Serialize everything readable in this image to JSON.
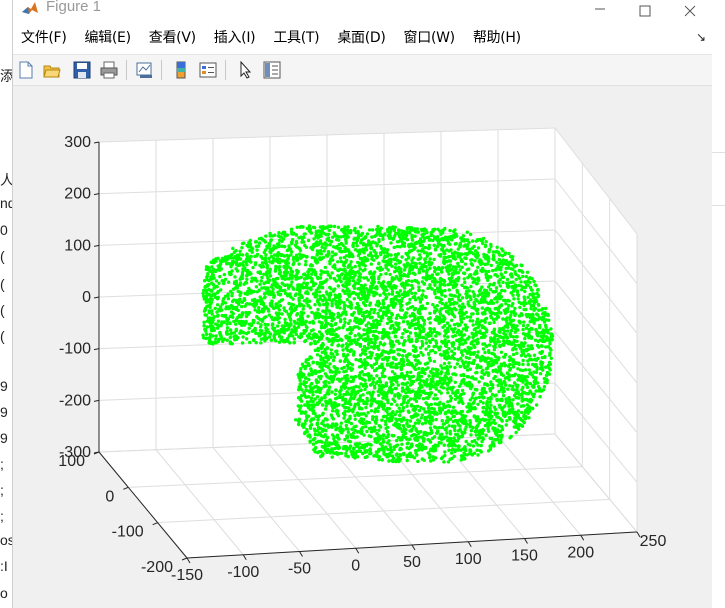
{
  "window": {
    "title": "Figure 1",
    "menu": [
      "文件(F)",
      "编辑(E)",
      "查看(V)",
      "插入(I)",
      "工具(T)",
      "桌面(D)",
      "窗口(W)",
      "帮助(H)"
    ],
    "menu_overflow_icon": "chevron-icon",
    "controls": [
      "minimize-icon",
      "maximize-icon",
      "close-icon"
    ]
  },
  "toolbar": {
    "buttons": [
      "new-figure-icon",
      "open-file-icon",
      "save-icon",
      "print-icon",
      "link-plot-icon",
      "insert-colorbar-icon",
      "insert-legend-icon",
      "edit-plot-pointer-icon",
      "property-inspector-icon"
    ]
  },
  "background_app": {
    "left_fragments": [
      "添",
      "人",
      "nd",
      "0",
      "(",
      "(",
      "(",
      "(",
      "9",
      "9",
      "9",
      ";",
      ";",
      ";",
      "os",
      ":I",
      "o"
    ]
  },
  "chart_data": {
    "type": "scatter",
    "title": "",
    "marker_color": "#00ff00",
    "grid": true,
    "view": "3d",
    "x_ticks": [
      "-150",
      "-100",
      "-50",
      "0",
      "50",
      "100",
      "150",
      "200",
      "250"
    ],
    "y_ticks": [
      "-200",
      "-100",
      "0",
      "100"
    ],
    "z_ticks": [
      "300",
      "200",
      "100",
      "0",
      "-100",
      "-200",
      "-300"
    ],
    "xlim": [
      -150,
      250
    ],
    "ylim": [
      -200,
      100
    ],
    "zlim": [
      -300,
      300
    ],
    "series": [
      {
        "description": "dense point cloud forming a curved sheet",
        "approx_points": 6000
      }
    ]
  }
}
